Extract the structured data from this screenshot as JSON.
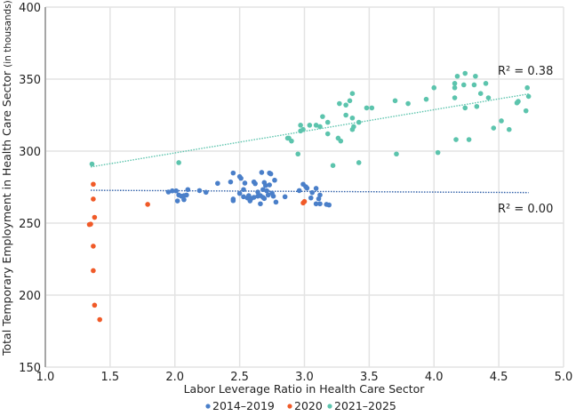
{
  "chart_data": {
    "type": "scatter",
    "xlabel": "Labor Leverage Ratio in Health Care Sector",
    "ylabel": "Total Temporary Employment in Health Care Sector",
    "ylabel_unit": "(in thousands)",
    "xlim": [
      1.0,
      5.0
    ],
    "ylim": [
      150,
      400
    ],
    "xticks": [
      "1.0",
      "1.5",
      "2.0",
      "2.5",
      "3.0",
      "3.5",
      "4.0",
      "4.5",
      "5.0"
    ],
    "yticks": [
      "150",
      "200",
      "250",
      "300",
      "350",
      "400"
    ],
    "grid": true,
    "legend_position": "bottom",
    "series": [
      {
        "name": "2014–2019",
        "color": "#4a7fc9",
        "points": [
          [
            1.95,
            271.6
          ],
          [
            1.98,
            272.4
          ],
          [
            2.01,
            272.4
          ],
          [
            2.03,
            269.5
          ],
          [
            2.05,
            268.7
          ],
          [
            2.07,
            269.1
          ],
          [
            2.09,
            269.5
          ],
          [
            2.1,
            273.3
          ],
          [
            2.02,
            265.4
          ],
          [
            2.07,
            266.3
          ],
          [
            2.19,
            272.6
          ],
          [
            2.24,
            271.4
          ],
          [
            2.33,
            277.6
          ],
          [
            2.43,
            278.6
          ],
          [
            2.45,
            284.8
          ],
          [
            2.45,
            266.7
          ],
          [
            2.45,
            265.6
          ],
          [
            2.5,
            282.3
          ],
          [
            2.51,
            281.1
          ],
          [
            2.54,
            277.8
          ],
          [
            2.53,
            273.3
          ],
          [
            2.5,
            270.6
          ],
          [
            2.53,
            268.3
          ],
          [
            2.56,
            267.5
          ],
          [
            2.58,
            265.4
          ],
          [
            2.59,
            267.1
          ],
          [
            2.61,
            267.9
          ],
          [
            2.64,
            268.7
          ],
          [
            2.66,
            269.1
          ],
          [
            2.68,
            267.9
          ],
          [
            2.69,
            267.1
          ],
          [
            2.66,
            263.4
          ],
          [
            2.67,
            285.2
          ],
          [
            2.61,
            278.6
          ],
          [
            2.62,
            277.4
          ],
          [
            2.69,
            278.2
          ],
          [
            2.7,
            276.1
          ],
          [
            2.73,
            276.5
          ],
          [
            2.68,
            273.3
          ],
          [
            2.71,
            272.4
          ],
          [
            2.73,
            284.8
          ],
          [
            2.74,
            284.2
          ],
          [
            2.77,
            279.8
          ],
          [
            2.75,
            270.8
          ],
          [
            2.76,
            268.7
          ],
          [
            2.78,
            264.6
          ],
          [
            2.85,
            268.3
          ],
          [
            2.96,
            272.6
          ],
          [
            2.99,
            277.0
          ],
          [
            3.01,
            275.3
          ],
          [
            3.02,
            274.3
          ],
          [
            3.09,
            274.1
          ],
          [
            3.06,
            271.2
          ],
          [
            3.12,
            269.5
          ],
          [
            3.05,
            267.5
          ],
          [
            3.11,
            266.9
          ],
          [
            3.09,
            263.4
          ],
          [
            3.12,
            263.4
          ],
          [
            3.17,
            263.0
          ],
          [
            3.19,
            262.6
          ],
          [
            2.57,
            269.1
          ],
          [
            2.72,
            269.5
          ],
          [
            2.64,
            271.6
          ]
        ],
        "trendline": {
          "x": [
            1.35,
            4.73
          ],
          "y": [
            272.8,
            271.2
          ],
          "r2_label": "R² = 0.00"
        }
      },
      {
        "name": "2020",
        "color": "#f05a28",
        "points": [
          [
            1.37,
            277
          ],
          [
            1.37,
            266.7
          ],
          [
            1.38,
            254
          ],
          [
            1.34,
            249
          ],
          [
            1.35,
            249.3
          ],
          [
            1.37,
            234
          ],
          [
            1.37,
            217
          ],
          [
            1.38,
            193
          ],
          [
            1.42,
            183
          ],
          [
            1.79,
            263
          ],
          [
            2.99,
            264
          ],
          [
            3.0,
            265
          ]
        ]
      },
      {
        "name": "2021–2025",
        "color": "#5cc4ad",
        "points": [
          [
            1.36,
            291
          ],
          [
            2.03,
            292
          ],
          [
            2.95,
            298
          ],
          [
            2.87,
            309
          ],
          [
            2.88,
            309
          ],
          [
            2.9,
            307
          ],
          [
            2.97,
            318
          ],
          [
            2.97,
            314
          ],
          [
            2.99,
            315
          ],
          [
            3.04,
            318
          ],
          [
            3.09,
            318
          ],
          [
            3.12,
            317
          ],
          [
            3.14,
            324
          ],
          [
            3.18,
            320
          ],
          [
            3.18,
            312
          ],
          [
            3.22,
            290
          ],
          [
            3.26,
            309
          ],
          [
            3.28,
            307
          ],
          [
            3.27,
            333
          ],
          [
            3.32,
            332
          ],
          [
            3.32,
            325
          ],
          [
            3.35,
            335
          ],
          [
            3.37,
            340
          ],
          [
            3.37,
            323
          ],
          [
            3.37,
            315
          ],
          [
            3.38,
            317
          ],
          [
            3.42,
            320
          ],
          [
            3.42,
            292
          ],
          [
            3.48,
            330
          ],
          [
            3.52,
            330
          ],
          [
            3.7,
            335
          ],
          [
            3.71,
            298
          ],
          [
            3.8,
            333
          ],
          [
            3.94,
            336
          ],
          [
            4.0,
            344
          ],
          [
            4.03,
            299
          ],
          [
            4.16,
            337
          ],
          [
            4.16,
            344
          ],
          [
            4.16,
            347
          ],
          [
            4.18,
            352
          ],
          [
            4.24,
            354
          ],
          [
            4.23,
            346
          ],
          [
            4.24,
            330
          ],
          [
            4.17,
            308
          ],
          [
            4.27,
            308
          ],
          [
            4.32,
            352
          ],
          [
            4.31,
            346
          ],
          [
            4.33,
            331
          ],
          [
            4.36,
            340
          ],
          [
            4.4,
            347
          ],
          [
            4.42,
            337
          ],
          [
            4.46,
            316
          ],
          [
            4.52,
            321
          ],
          [
            4.58,
            315
          ],
          [
            4.64,
            333.5
          ],
          [
            4.65,
            334.5
          ],
          [
            4.71,
            328
          ],
          [
            4.72,
            344
          ],
          [
            4.73,
            338
          ]
        ],
        "trendline": {
          "x": [
            1.35,
            4.73
          ],
          "y": [
            289,
            339.7
          ],
          "r2_label": "R² = 0.38"
        }
      }
    ]
  }
}
